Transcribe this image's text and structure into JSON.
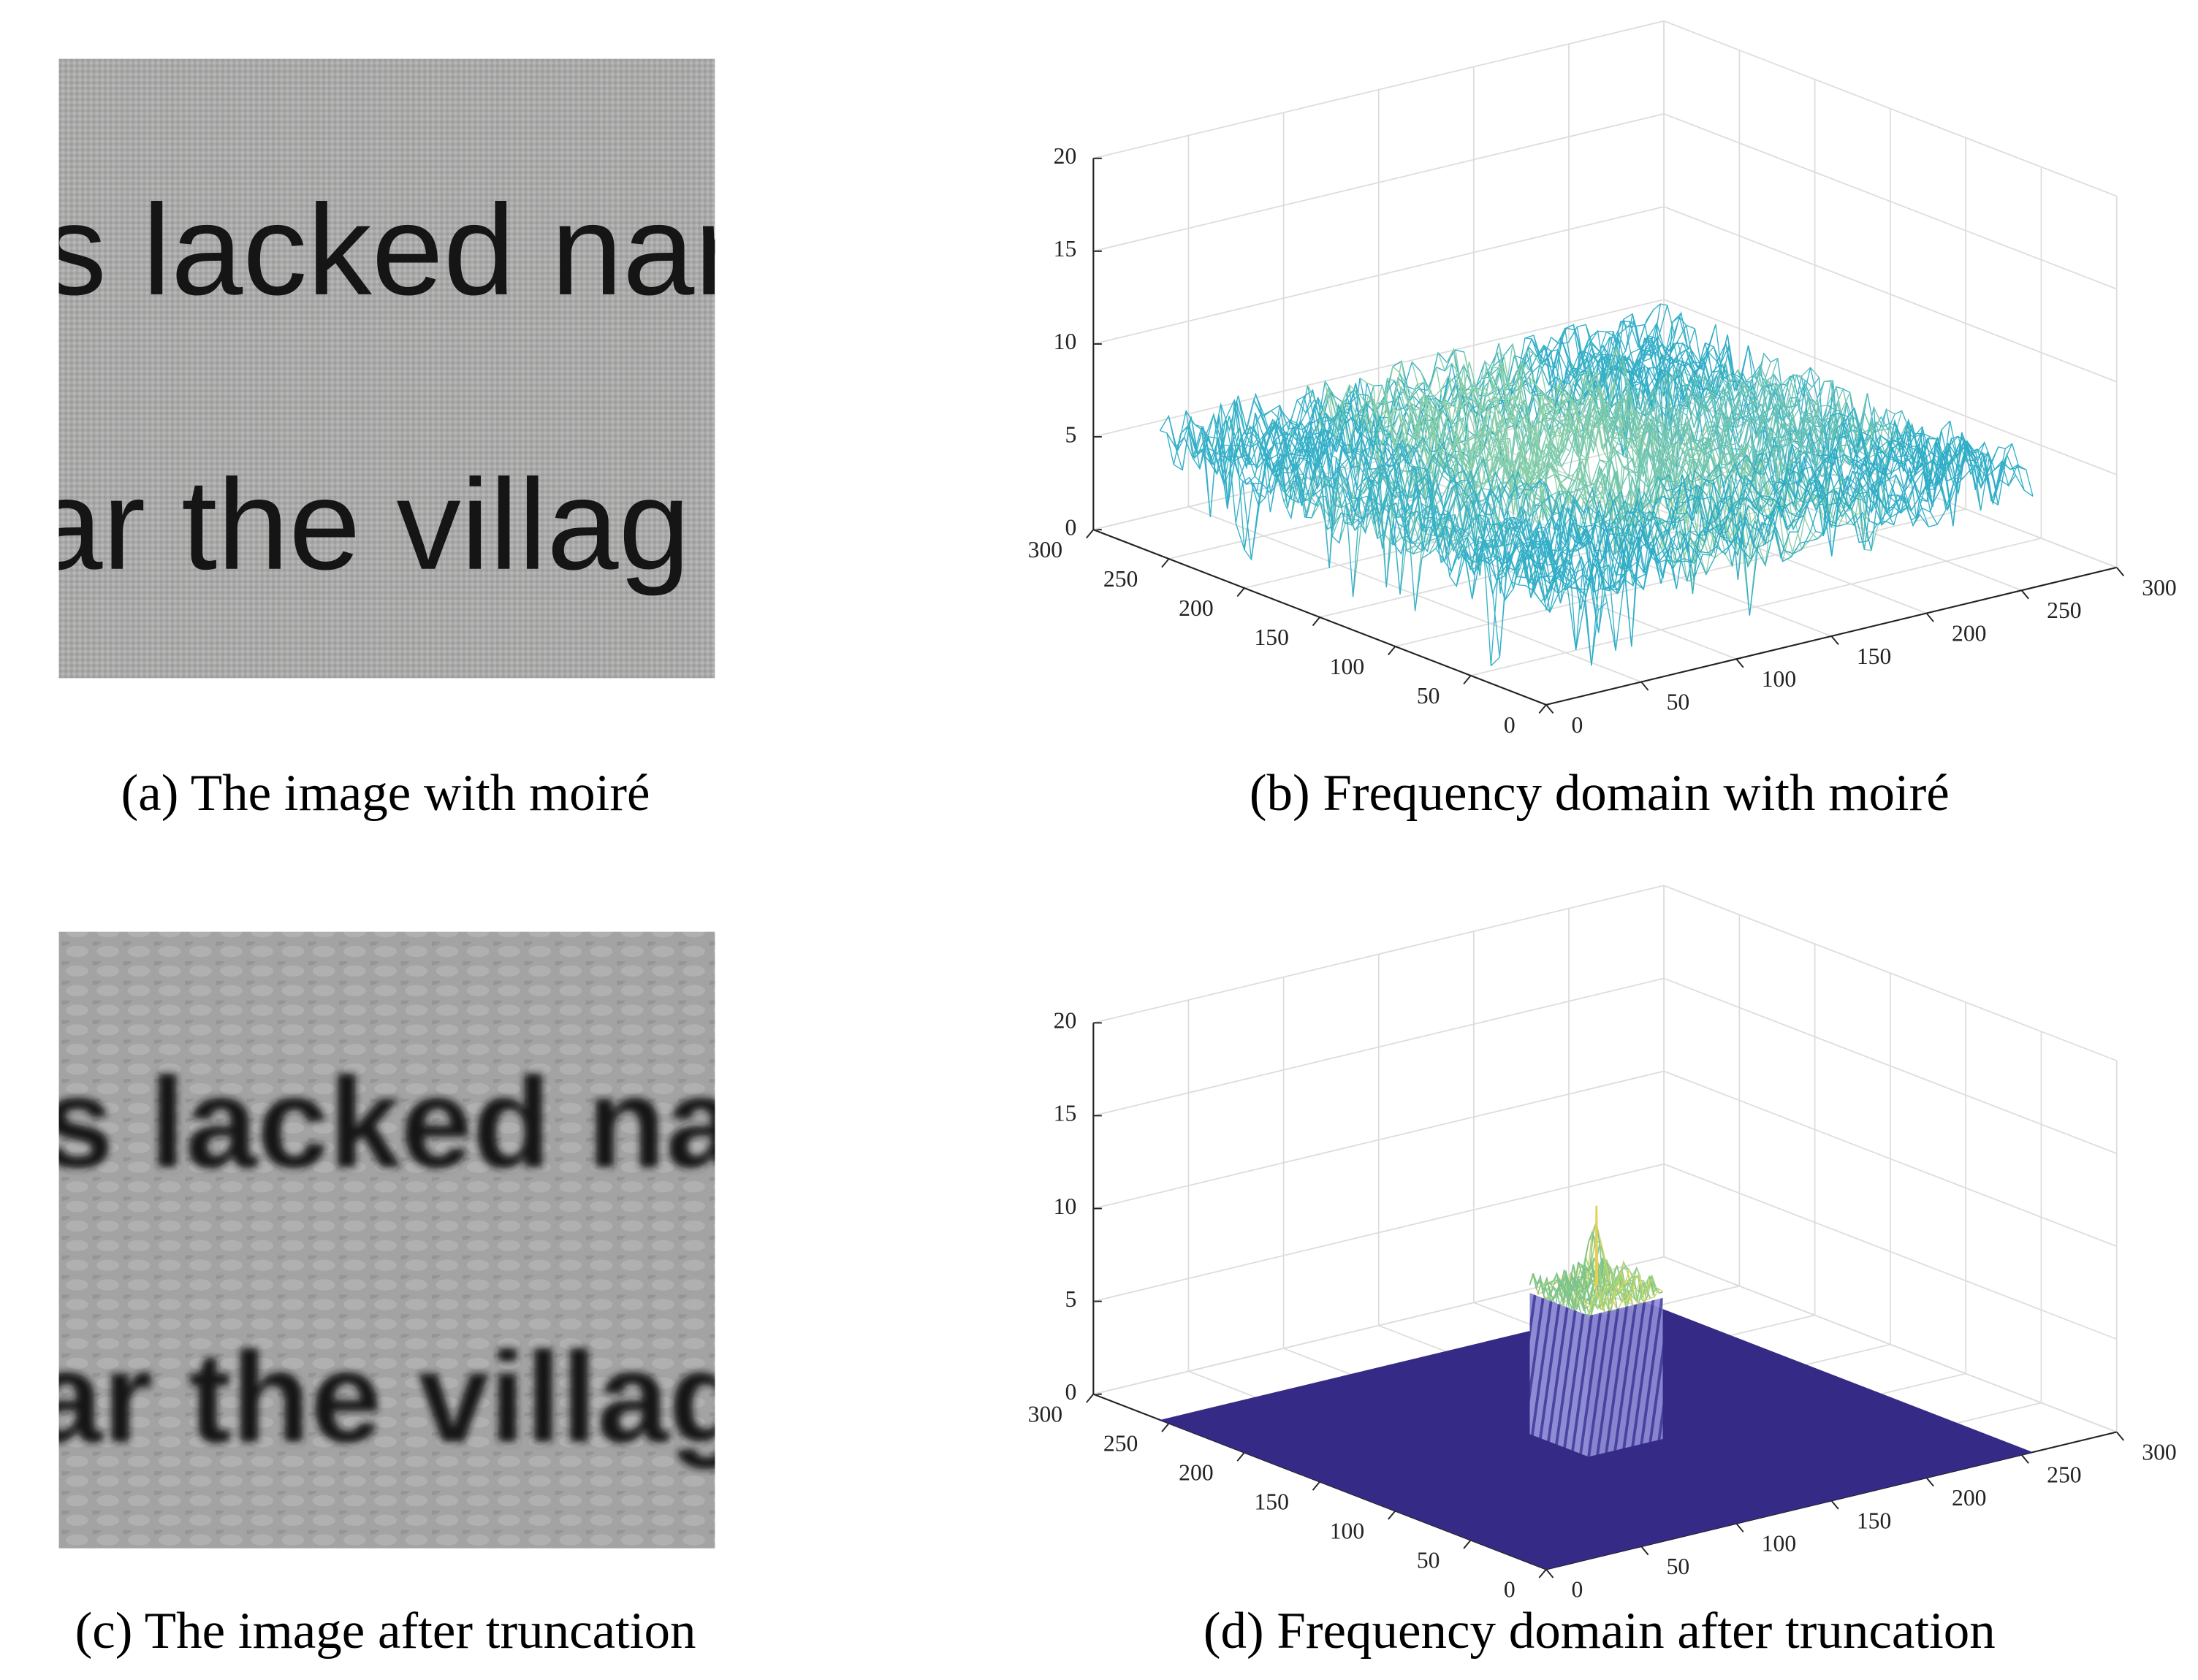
{
  "panels": [
    {
      "caption": "(a) The image with moiré",
      "image_text": [
        "s lacked nar",
        "ar the villag"
      ]
    },
    {
      "caption": "(b) Frequency domain with moiré",
      "plot": {
        "zticks": [
          0,
          5,
          10,
          15,
          20
        ],
        "yticks": [
          0,
          50,
          100,
          150,
          200,
          250,
          300
        ],
        "xticks": [
          0,
          50,
          100,
          150,
          200,
          250,
          300
        ]
      }
    },
    {
      "caption": "(c) The image after truncation",
      "image_text": [
        "s lacked nar",
        "ar the villag"
      ]
    },
    {
      "caption": "(d) Frequency domain after truncation",
      "plot": {
        "zticks": [
          0,
          5,
          10,
          15,
          20
        ],
        "yticks": [
          0,
          50,
          100,
          150,
          200,
          250,
          300
        ],
        "xticks": [
          0,
          50,
          100,
          150,
          200,
          250,
          300
        ]
      }
    }
  ]
}
